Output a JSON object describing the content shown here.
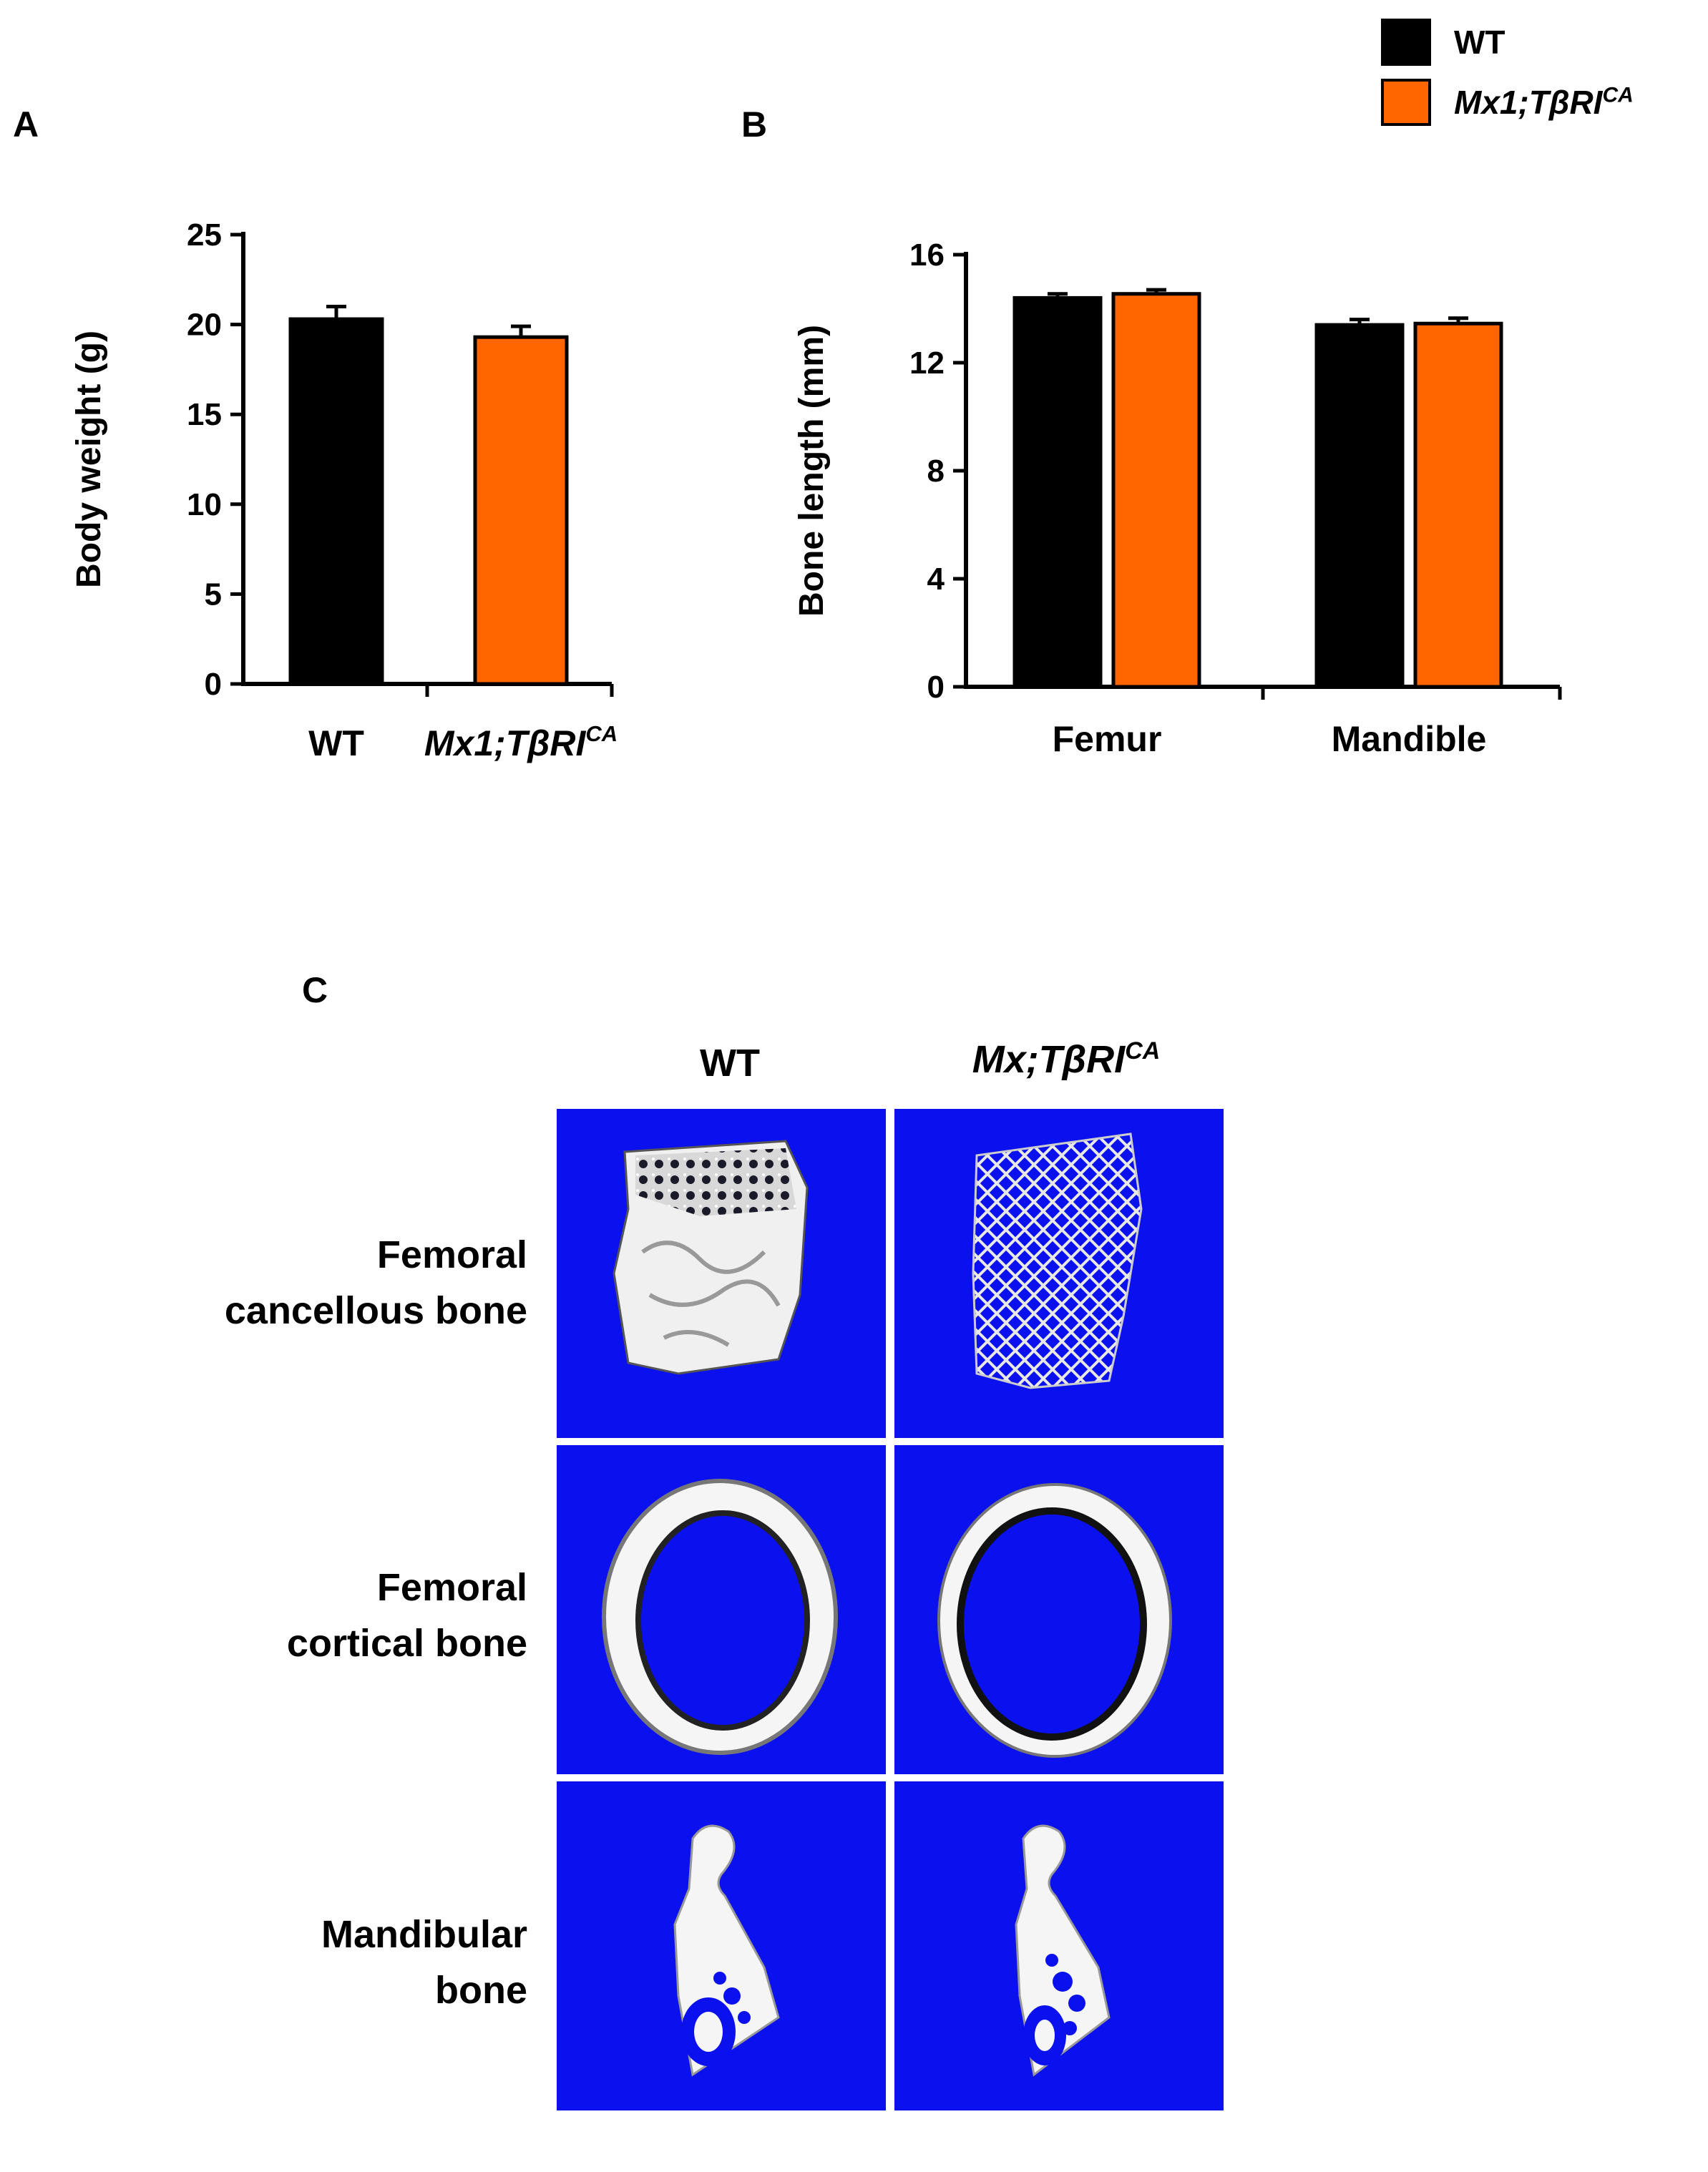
{
  "panels": {
    "a": "A",
    "b": "B",
    "c": "C"
  },
  "legend": [
    {
      "label": "WT",
      "color": "#000000",
      "italic": false
    },
    {
      "label": "Mx1;TβRI",
      "sup": "CA",
      "color": "#ff6600",
      "italic": true
    }
  ],
  "colors": {
    "wt": "#000000",
    "mutant": "#ff6600",
    "scan_background": "#0a10ee"
  },
  "chart_data": [
    {
      "type": "bar",
      "ylabel": "Body weight (g)",
      "ylim": [
        0,
        25
      ],
      "yticks": [
        0,
        5,
        10,
        15,
        20,
        25
      ],
      "categories": [
        "WT",
        "Mx1;TβRI"
      ],
      "category_sup": [
        "",
        "CA"
      ],
      "category_italic": [
        false,
        true
      ],
      "values": [
        20.3,
        19.3
      ],
      "errors": [
        0.7,
        0.6
      ],
      "colors": [
        "#000000",
        "#ff6600"
      ]
    },
    {
      "type": "bar",
      "ylabel": "Bone length (mm)",
      "ylim": [
        0,
        16
      ],
      "yticks": [
        0,
        4,
        8,
        12,
        16
      ],
      "categories": [
        "Femur",
        "Mandible"
      ],
      "series": [
        {
          "name": "WT",
          "values": [
            14.4,
            13.4
          ],
          "errors": [
            0.15,
            0.2
          ],
          "color": "#000000"
        },
        {
          "name": "Mx1;TβRI",
          "name_sup": "CA",
          "values": [
            14.55,
            13.45
          ],
          "errors": [
            0.15,
            0.2
          ],
          "color": "#ff6600"
        }
      ]
    }
  ],
  "image_grid": {
    "columns": [
      {
        "label": "WT",
        "italic": false
      },
      {
        "label": "Mx;TβRI",
        "sup": "CA",
        "italic": true
      }
    ],
    "rows": [
      {
        "line1": "Femoral",
        "line2": "cancellous bone"
      },
      {
        "line1": "Femoral",
        "line2": "cortical bone"
      },
      {
        "line1": "Mandibular",
        "line2": "bone"
      }
    ]
  }
}
